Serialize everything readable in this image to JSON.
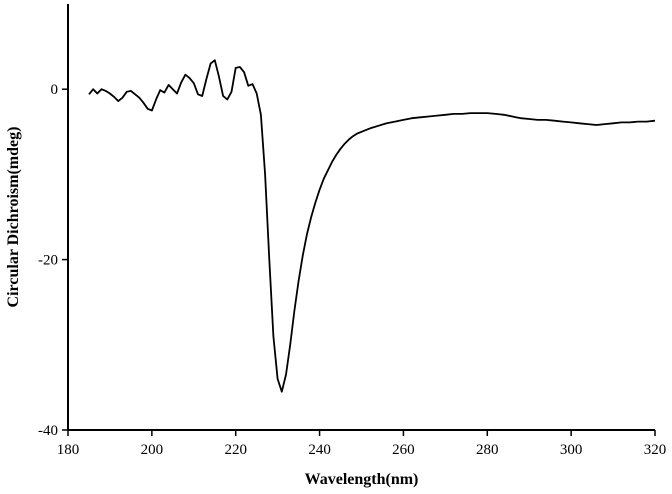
{
  "chart_data": {
    "type": "line",
    "title": "",
    "xlabel": "Wavelength(nm)",
    "ylabel": "Circular Dichroism(mdeg)",
    "xlim": [
      180,
      320
    ],
    "ylim": [
      -40,
      10
    ],
    "xticks": [
      180,
      200,
      220,
      240,
      260,
      280,
      300,
      320
    ],
    "yticks": [
      -40,
      -20,
      0
    ],
    "grid": false,
    "legend": "none",
    "series": [
      {
        "x": [
          185,
          186,
          187,
          188,
          189,
          190,
          191,
          192,
          193,
          194,
          195,
          196,
          197,
          198,
          199,
          200,
          201,
          202,
          203,
          204,
          205,
          206,
          207,
          208,
          209,
          210,
          211,
          212,
          213,
          214,
          215,
          216,
          217,
          218,
          219,
          220,
          221,
          222,
          223,
          224,
          225,
          226,
          227,
          228,
          229,
          230,
          231,
          232,
          233,
          234,
          235,
          236,
          237,
          238,
          239,
          240,
          241,
          242,
          243,
          244,
          245,
          246,
          247,
          248,
          249,
          250,
          252,
          254,
          256,
          258,
          260,
          262,
          264,
          266,
          268,
          270,
          272,
          274,
          276,
          278,
          280,
          282,
          284,
          286,
          288,
          290,
          292,
          294,
          296,
          298,
          300,
          302,
          304,
          306,
          308,
          310,
          312,
          314,
          316,
          318,
          320
        ],
        "y": [
          -0.6,
          0.0,
          -0.5,
          0.0,
          -0.2,
          -0.5,
          -0.9,
          -1.4,
          -1.0,
          -0.3,
          -0.2,
          -0.6,
          -1.0,
          -1.6,
          -2.3,
          -2.5,
          -1.2,
          -0.1,
          -0.4,
          0.5,
          0.0,
          -0.5,
          0.8,
          1.7,
          1.3,
          0.7,
          -0.6,
          -0.8,
          1.2,
          3.0,
          3.4,
          1.5,
          -0.8,
          -1.2,
          -0.3,
          2.5,
          2.6,
          2.0,
          0.4,
          0.6,
          -0.5,
          -3.0,
          -10.0,
          -20.0,
          -29.0,
          -34.0,
          -35.5,
          -33.5,
          -30.0,
          -26.0,
          -22.5,
          -19.5,
          -17.0,
          -15.0,
          -13.3,
          -11.8,
          -10.5,
          -9.5,
          -8.5,
          -7.7,
          -7.0,
          -6.4,
          -5.9,
          -5.5,
          -5.2,
          -5.0,
          -4.6,
          -4.3,
          -4.0,
          -3.8,
          -3.6,
          -3.4,
          -3.3,
          -3.2,
          -3.1,
          -3.0,
          -2.9,
          -2.9,
          -2.8,
          -2.8,
          -2.8,
          -2.9,
          -3.0,
          -3.2,
          -3.4,
          -3.5,
          -3.6,
          -3.6,
          -3.7,
          -3.8,
          -3.9,
          -4.0,
          -4.1,
          -4.2,
          -4.1,
          -4.0,
          -3.9,
          -3.9,
          -3.8,
          -3.8,
          -3.7
        ]
      }
    ]
  }
}
